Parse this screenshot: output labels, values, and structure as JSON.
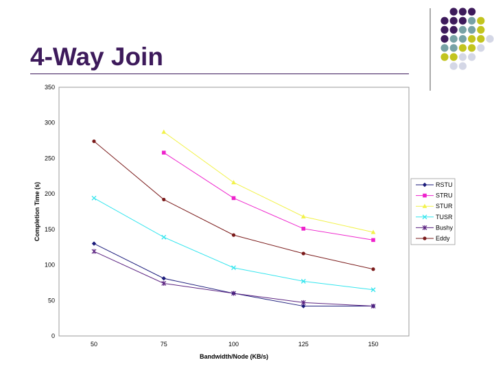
{
  "title": "4-Way Join",
  "colors": {
    "title": "#3d1a5b",
    "dot_purple": "#3d1a5b",
    "dot_teal": "#77a2a5",
    "dot_olive": "#c2c41e",
    "dot_lavender": "#d4d7e6"
  },
  "chart_data": {
    "type": "line",
    "xlabel": "Bandwidth/Node (KB/s)",
    "ylabel": "Completion Time (s)",
    "x_ticks": [
      50,
      75,
      100,
      125,
      150
    ],
    "y_ticks": [
      0,
      50,
      100,
      150,
      200,
      250,
      300,
      350
    ],
    "ylim": [
      0,
      350
    ],
    "grid": false,
    "legend_position": "right",
    "series": [
      {
        "name": "RSTU",
        "color": "#1a1a7a",
        "marker": "diamond",
        "x": [
          50,
          75,
          100,
          125,
          150
        ],
        "values": [
          130,
          81,
          60,
          42,
          42
        ]
      },
      {
        "name": "STRU",
        "color": "#ee22cc",
        "marker": "square",
        "x": [
          75,
          100,
          125,
          150
        ],
        "values": [
          258,
          194,
          151,
          135
        ]
      },
      {
        "name": "STUR",
        "color": "#f2f24a",
        "marker": "triangle",
        "x": [
          75,
          100,
          125,
          150
        ],
        "values": [
          287,
          216,
          168,
          146
        ]
      },
      {
        "name": "TUSR",
        "color": "#33e5ee",
        "marker": "x",
        "x": [
          50,
          75,
          100,
          125,
          150
        ],
        "values": [
          194,
          139,
          96,
          77,
          65
        ]
      },
      {
        "name": "Bushy",
        "color": "#5a2280",
        "marker": "star",
        "x": [
          50,
          75,
          100,
          125,
          150
        ],
        "values": [
          119,
          74,
          60,
          47,
          42
        ]
      },
      {
        "name": "Eddy",
        "color": "#7a1a1a",
        "marker": "circle",
        "x": [
          50,
          75,
          100,
          125,
          150
        ],
        "values": [
          274,
          192,
          142,
          116,
          94
        ]
      }
    ]
  }
}
